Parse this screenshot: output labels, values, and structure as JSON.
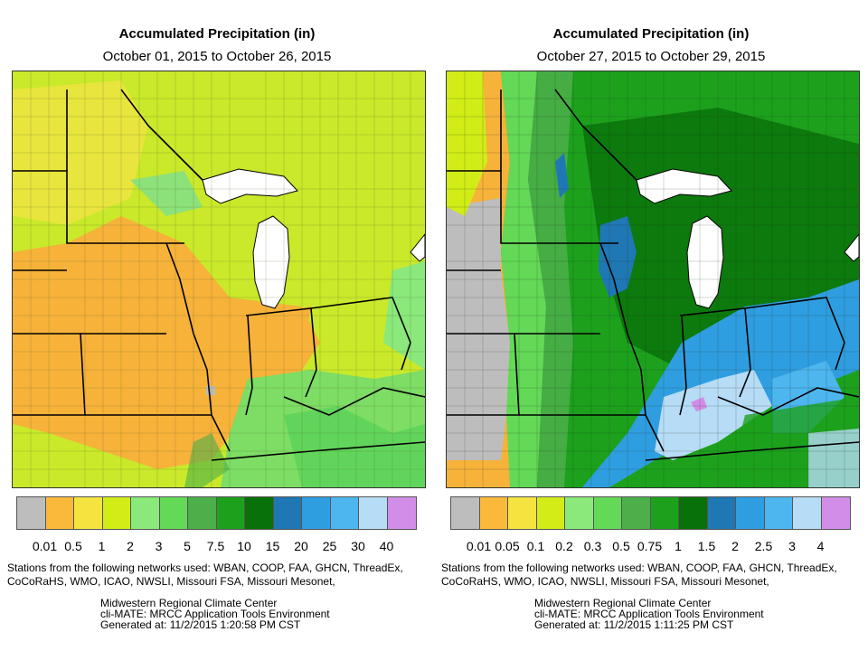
{
  "panels": [
    {
      "title": "Accumulated Precipitation (in)",
      "subtitle": "October 01, 2015 to October 26, 2015",
      "legend": {
        "colors": [
          "#bdbdbd",
          "#fbb93c",
          "#f5e33f",
          "#d2ec18",
          "#8ae97a",
          "#63d957",
          "#4caf4a",
          "#1da11d",
          "#097109",
          "#1f78b4",
          "#2f9ee0",
          "#4db6ef",
          "#b7dcf6",
          "#d28de8"
        ],
        "labels": [
          "0.01",
          "0.5",
          "1",
          "2",
          "3",
          "5",
          "7.5",
          "10",
          "15",
          "20",
          "25",
          "30",
          "40"
        ]
      },
      "stations_text": "Stations from the following networks used: WBAN, COOP, FAA, GHCN, ThreadEx, CoCoRaHS, WMO, ICAO, NWSLI, Missouri FSA, Missouri Mesonet,",
      "credits": [
        "Midwestern Regional Climate Center",
        "cli-MATE: MRCC Application Tools Environment",
        "Generated at: 11/2/2015 1:20:58 PM CST"
      ]
    },
    {
      "title": "Accumulated Precipitation (in)",
      "subtitle": "October 27, 2015 to October 29, 2015",
      "legend": {
        "colors": [
          "#bdbdbd",
          "#fbb93c",
          "#f5e33f",
          "#d2ec18",
          "#8ae97a",
          "#63d957",
          "#4caf4a",
          "#1da11d",
          "#097109",
          "#1f78b4",
          "#2f9ee0",
          "#4db6ef",
          "#b7dcf6",
          "#d28de8"
        ],
        "labels": [
          "0.01",
          "0.05",
          "0.1",
          "0.2",
          "0.3",
          "0.5",
          "0.75",
          "1",
          "1.5",
          "2",
          "2.5",
          "3",
          "4"
        ]
      },
      "stations_text": "Stations from the following networks used: WBAN, COOP, FAA, GHCN, ThreadEx, CoCoRaHS, WMO, ICAO, NWSLI, Missouri FSA, Missouri Mesonet,",
      "credits": [
        "Midwestern Regional Climate Center",
        "cli-MATE: MRCC Application Tools Environment",
        "Generated at: 11/2/2015 1:11:25 PM CST"
      ]
    }
  ]
}
